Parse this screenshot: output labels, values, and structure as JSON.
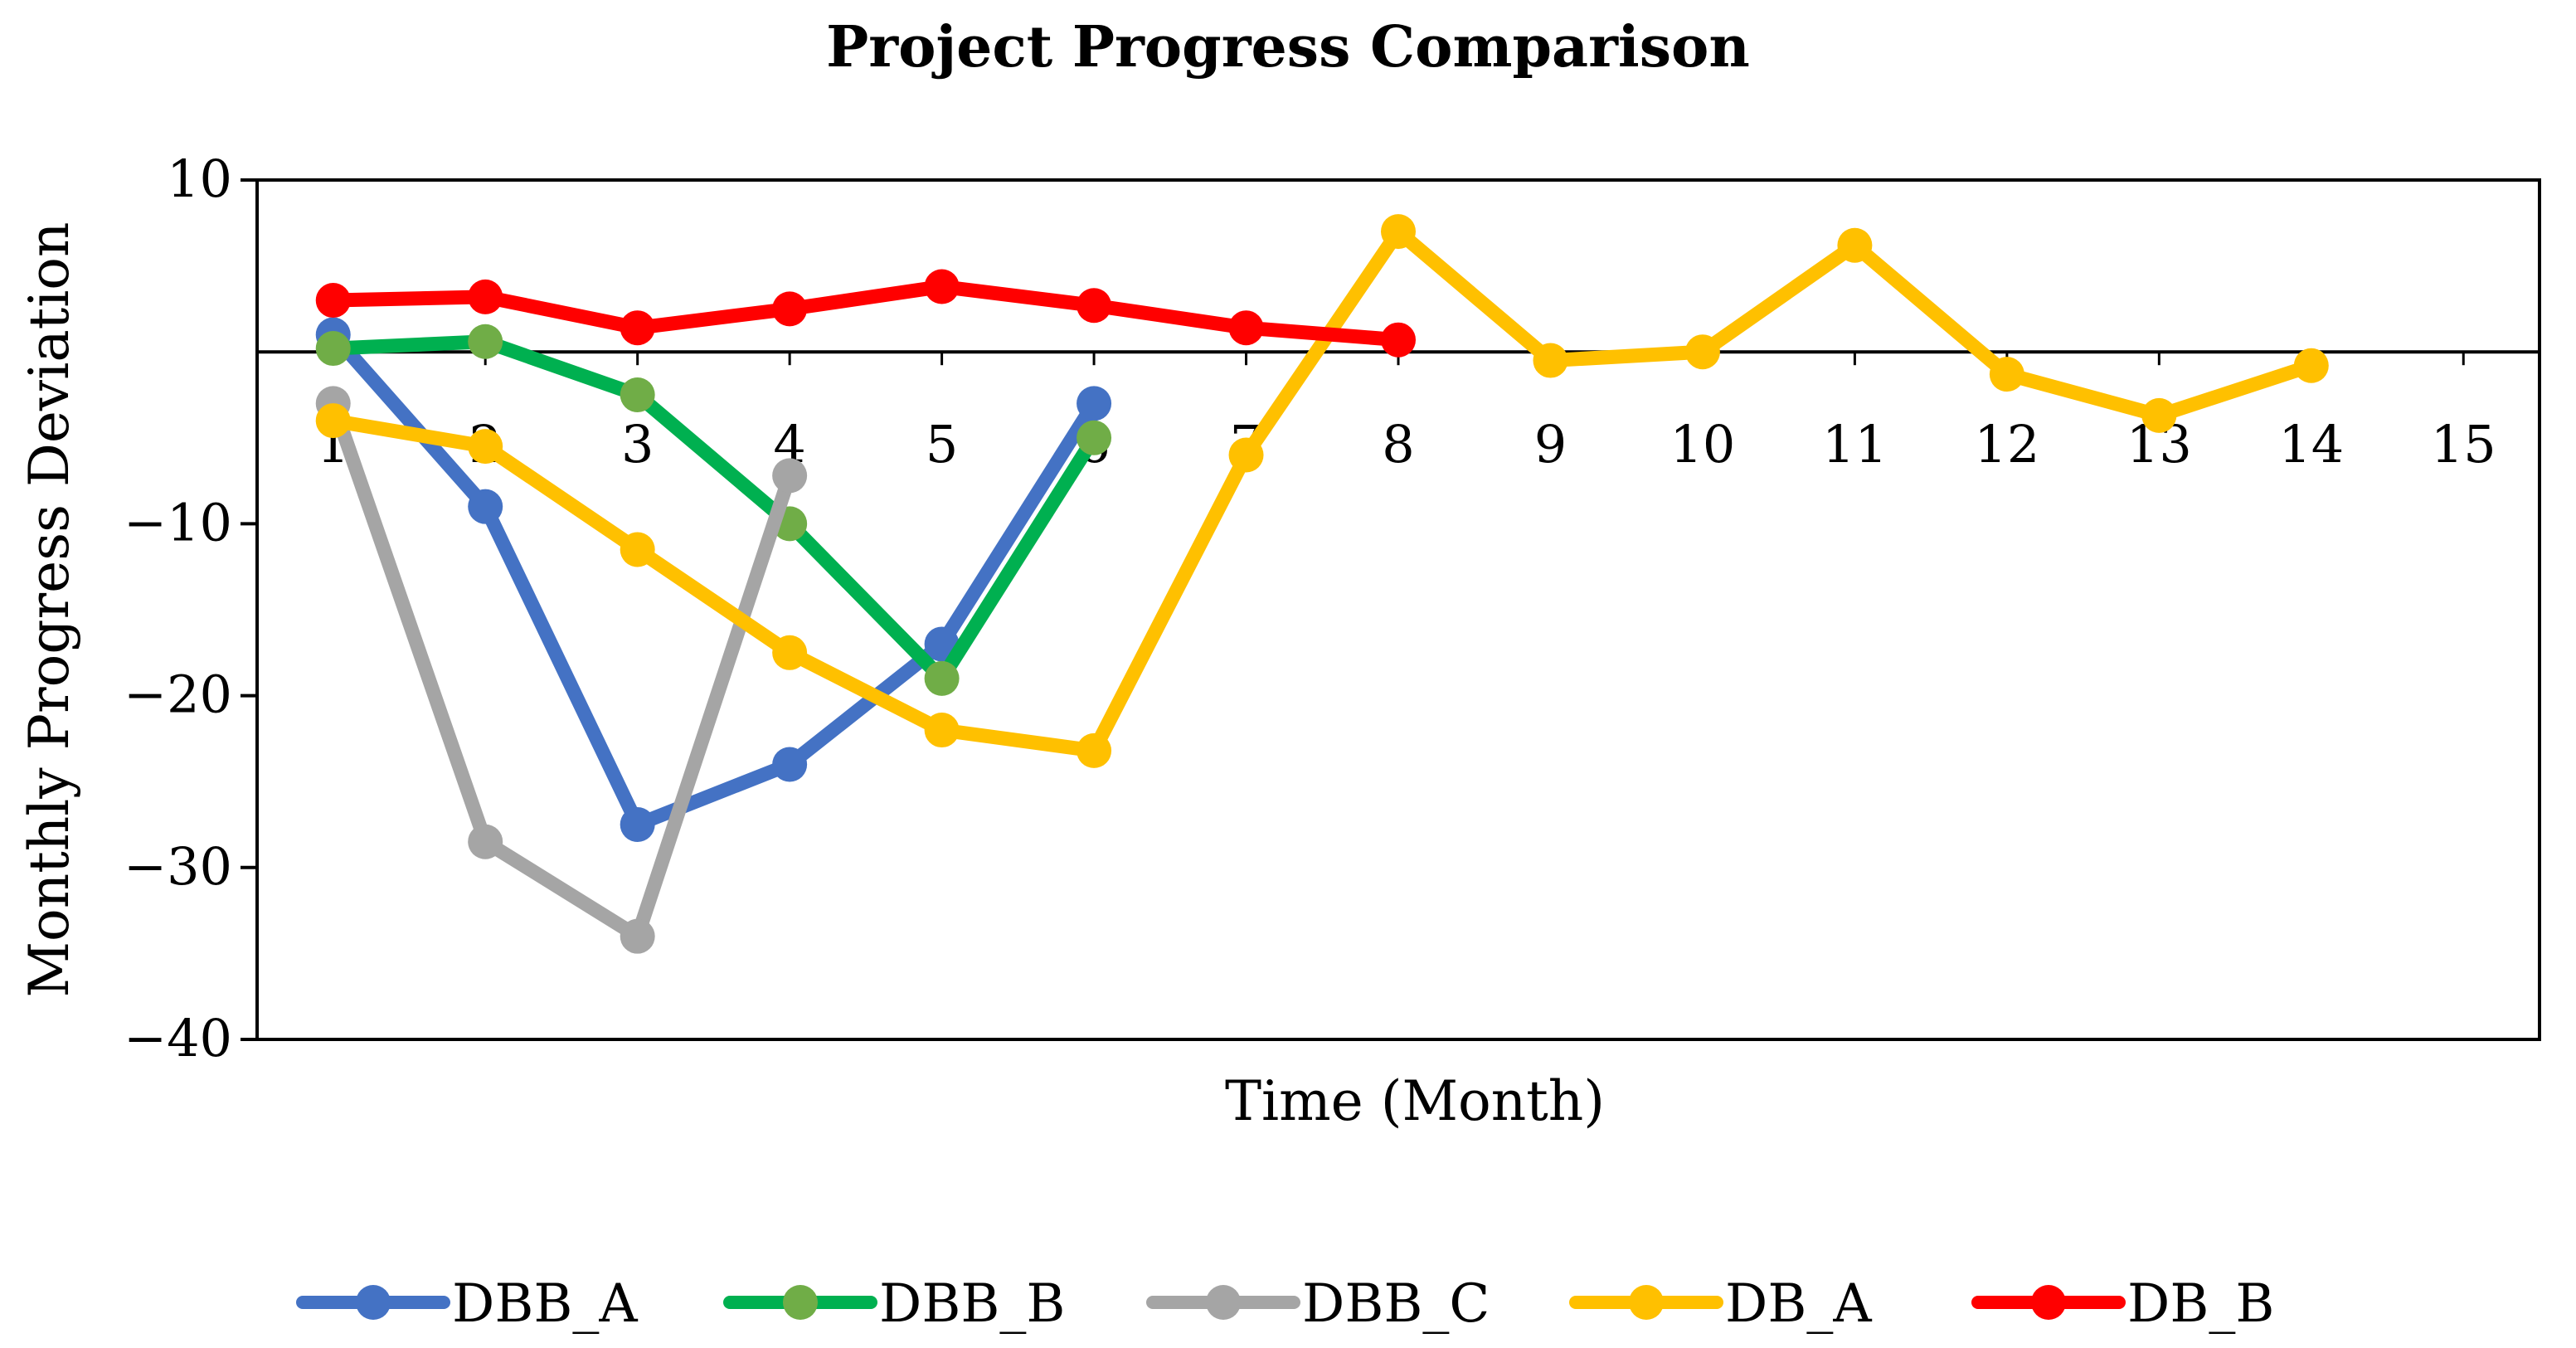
{
  "chart_data": {
    "type": "line",
    "title": "Project Progress Comparison",
    "xlabel": "Time (Month)",
    "ylabel": "Monthly Progress Deviation",
    "ylim": [
      -40,
      10
    ],
    "xlim": [
      0.5,
      15.5
    ],
    "yticks": [
      10,
      -10,
      -20,
      -30,
      -40
    ],
    "ytick_labels": [
      "10",
      "−10",
      "−20",
      "−30",
      "−40"
    ],
    "x": [
      1,
      2,
      3,
      4,
      5,
      6,
      7,
      8,
      9,
      10,
      11,
      12,
      13,
      14,
      15
    ],
    "xtick_labels": [
      "1",
      "2",
      "3",
      "4",
      "5",
      "6",
      "7",
      "8",
      "9",
      "10",
      "11",
      "12",
      "13",
      "14",
      "15"
    ],
    "legend_position": "bottom",
    "series": [
      {
        "name": "DBB_A",
        "color": "#4472C4",
        "x": [
          1,
          2,
          3,
          4,
          5,
          6
        ],
        "values": [
          1,
          -9,
          -27.5,
          -24,
          -17,
          -3
        ]
      },
      {
        "name": "DBB_B",
        "color": "#00B050",
        "marker_color": "#70AD47",
        "x": [
          1,
          2,
          3,
          4,
          5,
          6
        ],
        "values": [
          0.2,
          0.6,
          -2.5,
          -10,
          -19,
          -5
        ]
      },
      {
        "name": "DBB_C",
        "color": "#A5A5A5",
        "x": [
          1,
          2,
          3,
          4
        ],
        "values": [
          -3,
          -28.5,
          -34,
          -7.2
        ]
      },
      {
        "name": "DB_A",
        "color": "#FFC000",
        "x": [
          1,
          2,
          3,
          4,
          5,
          6,
          7,
          8,
          9,
          10,
          11,
          12,
          13,
          14
        ],
        "values": [
          -4,
          -5.5,
          -11.5,
          -17.5,
          -22,
          -23.2,
          -6,
          7,
          -0.5,
          0,
          6.2,
          -1.3,
          -3.7,
          -0.8
        ]
      },
      {
        "name": "DB_B",
        "color": "#FF0000",
        "x": [
          1,
          2,
          3,
          4,
          5,
          6,
          7,
          8
        ],
        "values": [
          3,
          3.2,
          1.4,
          2.5,
          3.8,
          2.7,
          1.4,
          0.7
        ]
      }
    ]
  }
}
